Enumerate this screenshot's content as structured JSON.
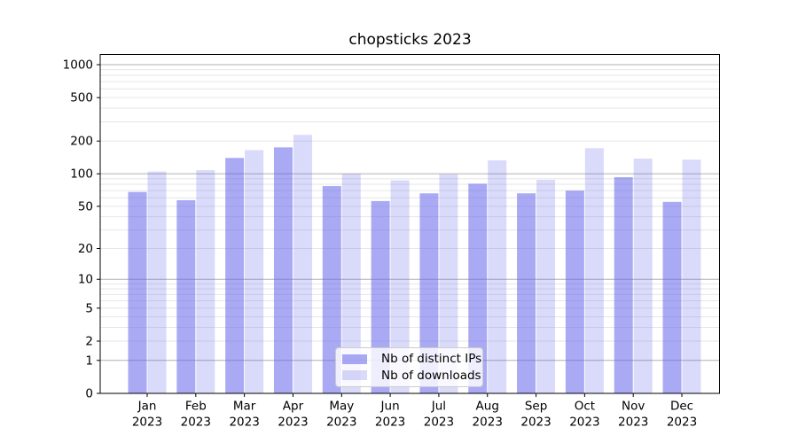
{
  "figure": {
    "title": "chopsticks 2023"
  },
  "chart_data": {
    "type": "bar",
    "title": "chopsticks 2023",
    "categories": [
      "Jan",
      "Feb",
      "Mar",
      "Apr",
      "May",
      "Jun",
      "Jul",
      "Aug",
      "Sep",
      "Oct",
      "Nov",
      "Dec"
    ],
    "year_label": "2023",
    "series": [
      {
        "name": "Nb of distinct IPs",
        "color": "rgba(100,100,235,0.55)",
        "values": [
          68,
          57,
          140,
          175,
          77,
          56,
          66,
          81,
          66,
          70,
          93,
          55
        ]
      },
      {
        "name": "Nb of downloads",
        "color": "rgba(100,100,235,0.24)",
        "values": [
          105,
          108,
          165,
          228,
          100,
          87,
          99,
          133,
          88,
          172,
          138,
          135
        ]
      }
    ],
    "y_axis": {
      "scale": "log1p-symlog",
      "range": [
        0,
        1000
      ],
      "ticks": [
        0,
        1,
        2,
        5,
        10,
        20,
        50,
        100,
        200,
        500,
        1000
      ],
      "tick_labels": [
        "0",
        "1",
        "2",
        "5",
        "10",
        "20",
        "50",
        "100",
        "200",
        "500",
        "1000"
      ],
      "major_gridlines": [
        1,
        10,
        100,
        1000
      ]
    },
    "grid": true,
    "legend_position": "lower center",
    "colors": {
      "major_gridline": "#b0b0b0",
      "minor_gridline": "#e6e6e6",
      "axis": "#000000",
      "background": "#ffffff",
      "legend_border": "#cccccc"
    }
  }
}
